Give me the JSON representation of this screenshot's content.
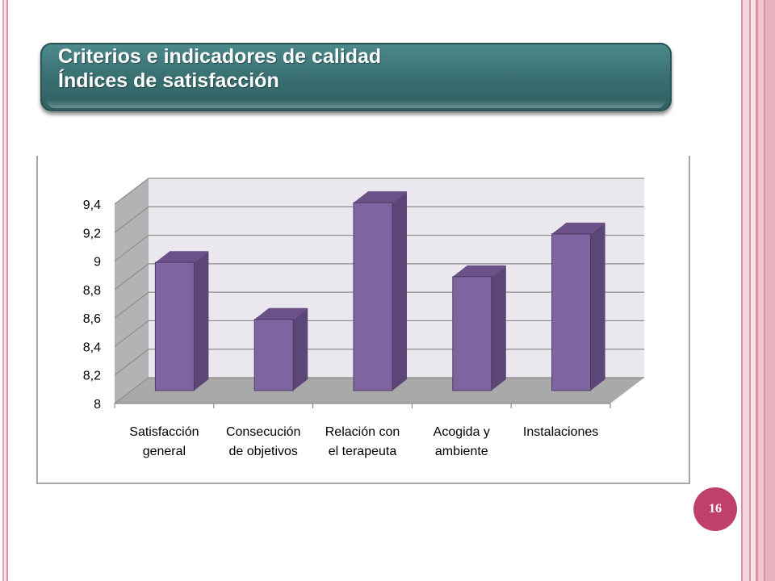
{
  "slide": {
    "title_line1": "Criterios e indicadores de calidad",
    "title_line2": "Índices de satisfacción",
    "page_number": "16"
  },
  "colors": {
    "bar_front": "#8064a2",
    "bar_side": "#5c4677",
    "bar_top": "#6b5188",
    "banner": "#3b7274",
    "badge": "#c0406c"
  },
  "chart_data": {
    "type": "bar",
    "categories": [
      [
        "Satisfacción",
        "general"
      ],
      [
        "Consecución",
        "de objetivos"
      ],
      [
        "Relación con",
        "el terapeuta"
      ],
      [
        "Acogida y",
        "ambiente"
      ],
      [
        "Instalaciones"
      ]
    ],
    "values": [
      8.9,
      8.5,
      9.32,
      8.8,
      9.1
    ],
    "yticks": [
      "8",
      "8,2",
      "8,4",
      "8,6",
      "8,8",
      "9",
      "9,2",
      "9,4"
    ],
    "ylim": [
      8,
      9.4
    ],
    "grid": true,
    "legend": "none",
    "style": "3d-column",
    "title": "",
    "xlabel": "",
    "ylabel": ""
  }
}
